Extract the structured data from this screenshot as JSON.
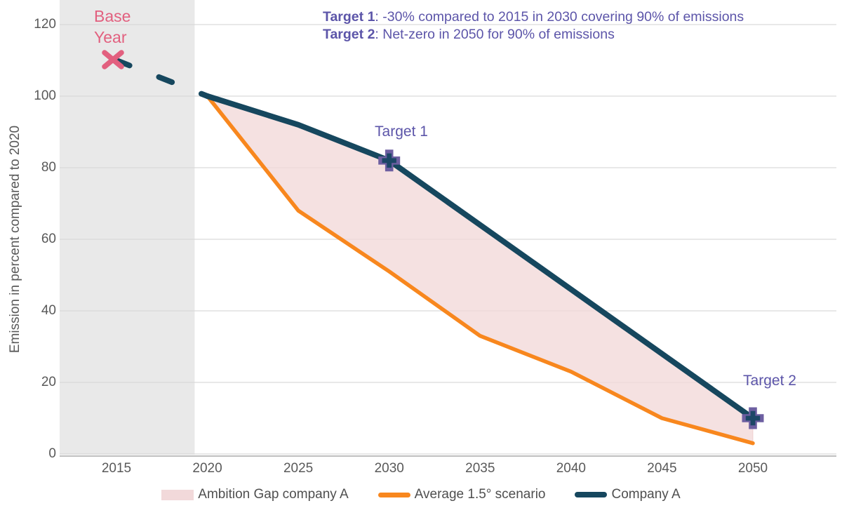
{
  "chart": {
    "y_axis_title": "Emission in percent compared to 2020",
    "annotations": {
      "target1": {
        "label": "Target 1",
        "rest": ": -30% compared to 2015 in 2030 covering 90% of emissions"
      },
      "target2": {
        "label": "Target 2",
        "rest": ": Net-zero in 2050 for 90% of emissions"
      },
      "base_year": {
        "line1": "Base",
        "line2": "Year"
      },
      "target1_point": {
        "label": "Target 1"
      },
      "target2_point": {
        "label": "Target 2"
      }
    },
    "legend": {
      "items": [
        {
          "label": "Ambition Gap company A",
          "swatch": "pink-area"
        },
        {
          "label": "Average 1.5° scenario",
          "swatch": "orange-line"
        },
        {
          "label": "Company A",
          "swatch": "navy-line"
        }
      ]
    }
  },
  "chart_data": {
    "type": "line",
    "title": "",
    "xlabel": "",
    "ylabel": "Emission in percent compared to 2020",
    "ylim": [
      0,
      120
    ],
    "xlim": [
      2011.9,
      2054
    ],
    "grid": "horizontal",
    "legend_position": "bottom-center",
    "x_ticks": [
      2015,
      2020,
      2025,
      2030,
      2035,
      2040,
      2045,
      2050
    ],
    "y_ticks": [
      0,
      20,
      40,
      60,
      80,
      100,
      120
    ],
    "series": [
      {
        "name": "Company A (pre-2020, dashed)",
        "style": "dashed",
        "color": "#16475E",
        "x": [
          2015,
          2020
        ],
        "y": [
          110,
          100
        ]
      },
      {
        "name": "Company A",
        "style": "solid",
        "color": "#16475E",
        "x": [
          2020,
          2025,
          2030,
          2050
        ],
        "y": [
          100,
          92,
          82,
          10
        ]
      },
      {
        "name": "Average 1.5° scenario",
        "style": "solid",
        "color": "#F8871E",
        "x": [
          2020,
          2025,
          2030,
          2035,
          2040,
          2045,
          2050
        ],
        "y": [
          100,
          68,
          51,
          33,
          23,
          10,
          3
        ]
      },
      {
        "name": "Ambition Gap company A",
        "style": "area-between",
        "between": [
          "Company A",
          "Average 1.5° scenario"
        ],
        "color": "#F2D9DA"
      }
    ],
    "markers": [
      {
        "shape": "x",
        "x": 2015,
        "y": 110,
        "color": "#E2607F",
        "label": "Base Year"
      },
      {
        "shape": "plus",
        "x": 2030,
        "y": 82,
        "color": "#6D5FA1",
        "inner_color": "#1C4766",
        "label": "Target 1"
      },
      {
        "shape": "plus",
        "x": 2050,
        "y": 10,
        "color": "#6D5FA1",
        "inner_color": "#1C4766",
        "label": "Target 2"
      }
    ],
    "shaded_region": {
      "x_start": 2011.9,
      "x_end": 2019.3,
      "color": "#E9E9E9"
    },
    "annotations": [
      "Target 1: -30% compared to 2015 in 2030 covering 90% of emissions",
      "Target 2: Net-zero in 2050 for 90% of emissions",
      "Base Year",
      "Target 1",
      "Target 2"
    ],
    "colors": {
      "company_line": "#16475E",
      "scenario_line": "#F8871E",
      "gap_fill": "#F2D9DA",
      "base_year_pink": "#E2607F",
      "annotation_purple": "#5C55A9",
      "marker_purple": "#6D5FA1",
      "gridline": "#D9D9D9",
      "axis_line": "#BFBFBF",
      "tick_text": "#595959",
      "shaded_band": "#E9E9E9"
    }
  }
}
